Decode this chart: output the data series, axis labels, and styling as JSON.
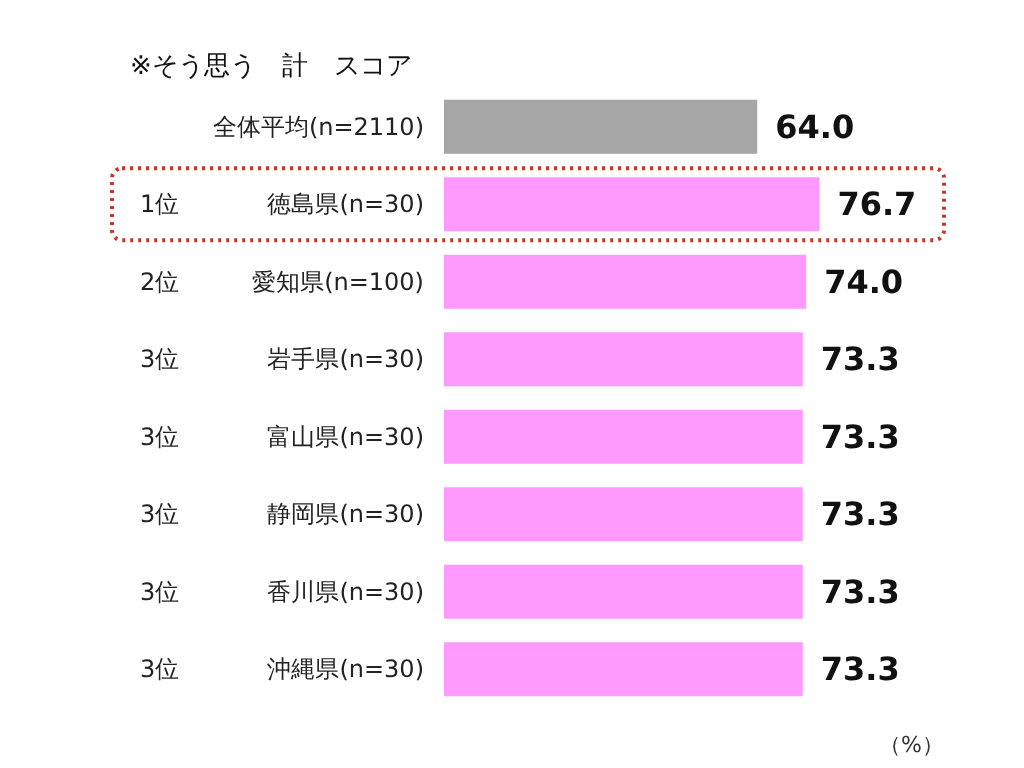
{
  "chart_data": {
    "type": "bar",
    "orientation": "horizontal",
    "title": "※そう思う　計　スコア",
    "xlabel": "（%）",
    "categories": [
      "全体平均(n=2110)",
      "徳島県(n=30)",
      "愛知県(n=100)",
      "岩手県(n=30)",
      "富山県(n=30)",
      "静岡県(n=30)",
      "香川県(n=30)",
      "沖縄県(n=30)"
    ],
    "values": [
      64.0,
      76.7,
      74.0,
      73.3,
      73.3,
      73.3,
      73.3,
      73.3
    ],
    "colors": [
      "#a6a6a6",
      "#ff99ff",
      "#ff99ff",
      "#ff99ff",
      "#ff99ff",
      "#ff99ff",
      "#ff99ff",
      "#ff99ff"
    ],
    "value_labels": [
      "64.0",
      "76.7",
      "74.0",
      "73.3",
      "73.3",
      "73.3",
      "73.3",
      "73.3"
    ],
    "annotations": [
      "1位",
      "2位",
      "3位",
      "3位",
      "3位",
      "3位",
      "3位"
    ]
  }
}
